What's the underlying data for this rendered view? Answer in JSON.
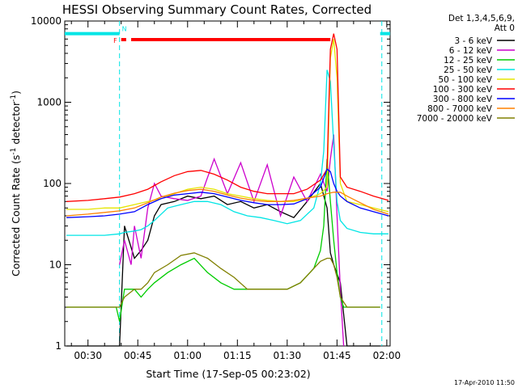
{
  "chart_data": {
    "type": "line",
    "title": "HESSI Observing Summary Count Rates, Corrected",
    "xlabel": "Start Time (17-Sep-05 00:23:02)",
    "ylabel": "Corrected Count Rate (s⁻¹ detector⁻¹)",
    "ylabel_main": "Corrected Count Rate (s",
    "ylabel_sup1": "-1",
    "ylabel_mid": " detector",
    "ylabel_sup2": "-1",
    "ylabel_end": ")",
    "y_scale": "log",
    "ylim": [
      1,
      10000
    ],
    "xlim_minutes": [
      23.0,
      121.0
    ],
    "x_ticks": [
      {
        "label": "00:30",
        "min": 30
      },
      {
        "label": "00:45",
        "min": 45
      },
      {
        "label": "01:00",
        "min": 60
      },
      {
        "label": "01:15",
        "min": 75
      },
      {
        "label": "01:30",
        "min": 90
      },
      {
        "label": "01:45",
        "min": 105
      },
      {
        "label": "02:00",
        "min": 120
      }
    ],
    "y_ticks": [
      {
        "label": "1",
        "v": 1
      },
      {
        "label": "10",
        "v": 10
      },
      {
        "label": "100",
        "v": 100
      },
      {
        "label": "1000",
        "v": 1000
      },
      {
        "label": "10000",
        "v": 10000
      }
    ],
    "legend_header": [
      "Det 1,3,4,5,6,9,",
      "Att 0"
    ],
    "legend_placement": "right",
    "flags": {
      "night_level": 7000,
      "night_intervals_min": [
        [
          23.0,
          39.5
        ],
        [
          118.0,
          121.0
        ]
      ],
      "flare_label": "F",
      "flare_level": 5900,
      "flare_intervals_min": [
        [
          40.0,
          41.5
        ],
        [
          43.0,
          103.0
        ]
      ],
      "saa_label": "N",
      "boundaries_min": [
        39.5,
        118.5
      ]
    },
    "series": [
      {
        "name": "3 - 6 keV",
        "color": "#000000",
        "x": [
          23.5,
          35,
          39.5,
          41,
          44,
          46,
          48,
          50,
          52,
          56,
          60,
          64,
          68,
          72,
          76,
          80,
          84,
          88,
          92,
          96,
          100,
          102,
          103,
          104,
          106,
          108,
          110,
          118
        ],
        "values": [
          1,
          1,
          1,
          30,
          12,
          15,
          20,
          40,
          55,
          60,
          70,
          65,
          70,
          55,
          60,
          50,
          55,
          45,
          38,
          60,
          100,
          50,
          14,
          10,
          6,
          1,
          1,
          1
        ]
      },
      {
        "name": "6 - 12 keV",
        "color": "#cc00cc",
        "x": [
          39.5,
          41,
          43,
          44,
          46,
          48,
          50,
          52,
          56,
          60,
          64,
          68,
          72,
          76,
          80,
          84,
          88,
          92,
          96,
          100,
          102,
          103,
          104,
          105,
          106,
          107
        ],
        "values": [
          10,
          20,
          10,
          30,
          12,
          50,
          100,
          70,
          65,
          62,
          70,
          200,
          75,
          180,
          60,
          170,
          40,
          120,
          60,
          130,
          80,
          200,
          400,
          40,
          5,
          1
        ]
      },
      {
        "name": "12 - 25 keV",
        "color": "#00cc00",
        "x": [
          23.5,
          38.5,
          39.5,
          41,
          44,
          46,
          48,
          50,
          54,
          58,
          62,
          66,
          70,
          74,
          78,
          82,
          86,
          90,
          94,
          98,
          100,
          101,
          102,
          103,
          104,
          105,
          106,
          107,
          108,
          112,
          116,
          118
        ],
        "values": [
          3,
          3,
          2,
          5,
          5,
          4,
          5,
          6,
          8,
          10,
          12,
          8,
          6,
          5,
          5,
          5,
          5,
          5,
          6,
          9,
          15,
          30,
          200,
          60,
          20,
          8,
          4,
          3,
          3,
          3,
          3,
          3
        ]
      },
      {
        "name": "25 - 50 keV",
        "color": "#00e5e5",
        "x": [
          23.5,
          30,
          35,
          39.5,
          41,
          44,
          46,
          48,
          50,
          54,
          58,
          62,
          66,
          70,
          74,
          78,
          82,
          86,
          90,
          94,
          98,
          100,
          101,
          102,
          103,
          104,
          105,
          106,
          108,
          112,
          116,
          120.5
        ],
        "values": [
          23,
          23,
          23,
          24,
          25,
          26,
          27,
          30,
          35,
          50,
          55,
          60,
          60,
          55,
          45,
          40,
          38,
          35,
          32,
          35,
          50,
          100,
          250,
          2500,
          1800,
          300,
          60,
          35,
          28,
          25,
          24,
          24
        ]
      },
      {
        "name": "50 - 100 keV",
        "color": "#e5e500",
        "x": [
          23.5,
          30,
          35,
          39.5,
          44,
          48,
          52,
          56,
          60,
          64,
          68,
          72,
          76,
          80,
          84,
          88,
          92,
          96,
          100,
          102,
          103,
          104,
          105,
          106,
          108,
          112,
          116,
          120.5
        ],
        "values": [
          48,
          48,
          50,
          50,
          55,
          60,
          65,
          75,
          85,
          90,
          85,
          75,
          70,
          65,
          62,
          60,
          60,
          65,
          75,
          90,
          3500,
          6000,
          2000,
          100,
          60,
          55,
          50,
          45
        ]
      },
      {
        "name": "100 - 300 keV",
        "color": "#ff0000",
        "x": [
          23.5,
          30,
          35,
          39.5,
          44,
          48,
          52,
          56,
          60,
          64,
          68,
          72,
          76,
          80,
          84,
          88,
          92,
          96,
          100,
          102,
          103,
          104,
          105,
          106,
          108,
          112,
          116,
          120.5
        ],
        "values": [
          60,
          62,
          65,
          68,
          75,
          85,
          105,
          125,
          140,
          145,
          130,
          110,
          90,
          80,
          75,
          75,
          75,
          85,
          110,
          150,
          4500,
          7000,
          4500,
          120,
          90,
          80,
          70,
          62
        ]
      },
      {
        "name": "300 - 800 keV",
        "color": "#0000ff",
        "x": [
          23.5,
          30,
          35,
          39.5,
          44,
          48,
          52,
          56,
          60,
          64,
          68,
          72,
          76,
          80,
          84,
          88,
          92,
          96,
          100,
          102,
          103,
          104,
          105,
          106,
          108,
          112,
          116,
          120.5
        ],
        "values": [
          38,
          39,
          40,
          42,
          45,
          55,
          65,
          72,
          75,
          78,
          75,
          68,
          62,
          58,
          55,
          55,
          56,
          65,
          90,
          150,
          140,
          100,
          80,
          70,
          60,
          50,
          45,
          40
        ]
      },
      {
        "name": "800 - 7000 keV",
        "color": "#ff8000",
        "x": [
          23.5,
          30,
          35,
          39.5,
          44,
          48,
          52,
          56,
          60,
          64,
          68,
          72,
          76,
          80,
          84,
          88,
          92,
          96,
          100,
          102,
          104,
          106,
          108,
          112,
          116,
          120.5
        ],
        "values": [
          40,
          42,
          44,
          46,
          50,
          58,
          68,
          76,
          82,
          85,
          80,
          72,
          66,
          62,
          60,
          60,
          62,
          66,
          70,
          75,
          78,
          78,
          70,
          58,
          48,
          42
        ]
      },
      {
        "name": "7000 - 20000 keV",
        "color": "#808000",
        "x": [
          23.5,
          30,
          38.5,
          39.5,
          41,
          44,
          46,
          48,
          50,
          54,
          58,
          62,
          66,
          70,
          74,
          78,
          82,
          86,
          90,
          94,
          98,
          100,
          102,
          103,
          104,
          105,
          106,
          108,
          112,
          116,
          118
        ],
        "values": [
          3,
          3,
          3,
          3,
          4,
          5,
          5,
          6,
          8,
          10,
          13,
          14,
          12,
          9,
          7,
          5,
          5,
          5,
          5,
          6,
          9,
          11,
          12,
          12,
          10,
          7,
          4,
          3,
          3,
          3,
          3
        ]
      }
    ]
  },
  "footer_timestamp": "17-Apr-2010 11:50"
}
